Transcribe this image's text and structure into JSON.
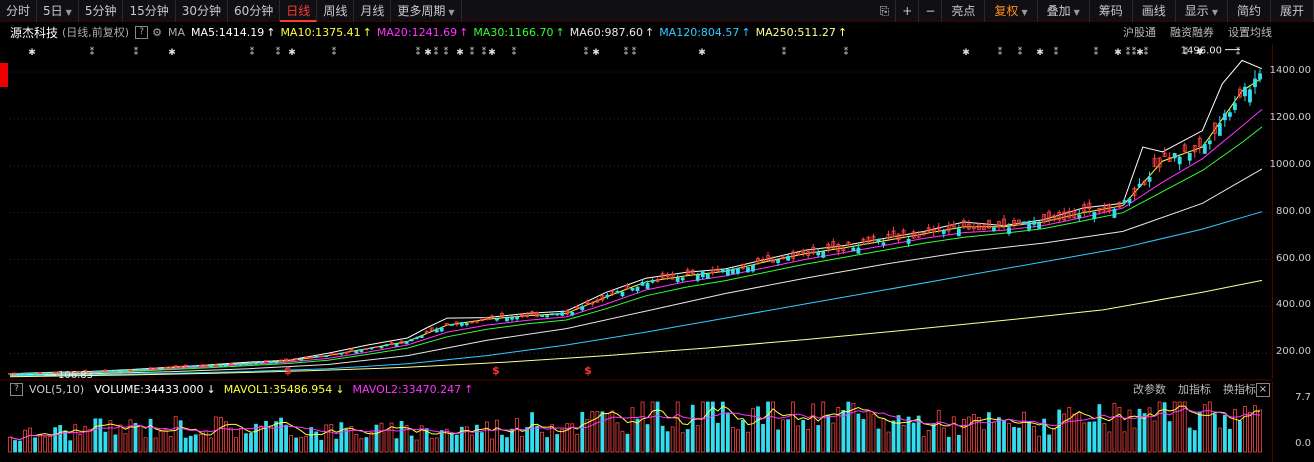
{
  "toolbar": {
    "left": [
      {
        "label": "分时",
        "active": false,
        "dropdown": false
      },
      {
        "label": "5日",
        "active": false,
        "dropdown": true
      },
      {
        "label": "5分钟",
        "active": false,
        "dropdown": false
      },
      {
        "label": "15分钟",
        "active": false,
        "dropdown": false
      },
      {
        "label": "30分钟",
        "active": false,
        "dropdown": false
      },
      {
        "label": "60分钟",
        "active": false,
        "dropdown": false
      },
      {
        "label": "日线",
        "active": true,
        "dropdown": false
      },
      {
        "label": "周线",
        "active": false,
        "dropdown": false
      },
      {
        "label": "月线",
        "active": false,
        "dropdown": false
      },
      {
        "label": "更多周期",
        "active": false,
        "dropdown": true
      }
    ],
    "right": [
      {
        "label": "亮点",
        "dropdown": false,
        "hl": false
      },
      {
        "label": "复权",
        "dropdown": true,
        "hl": true
      },
      {
        "label": "叠加",
        "dropdown": true,
        "hl": false
      },
      {
        "label": "筹码",
        "dropdown": false,
        "hl": false
      },
      {
        "label": "画线",
        "dropdown": false,
        "hl": false
      },
      {
        "label": "显示",
        "dropdown": true,
        "hl": false
      },
      {
        "label": "简约",
        "dropdown": false,
        "hl": false
      },
      {
        "label": "展开",
        "dropdown": false,
        "hl": false
      }
    ],
    "icons": [
      "lock-icon",
      "plus-icon",
      "minus-icon"
    ]
  },
  "info": {
    "stock_name": "源杰科技",
    "mode": "(日线,前复权)",
    "help": "?",
    "ma_label": "MA",
    "ma_items": [
      {
        "text": "MA5:1414.19",
        "color": "#ffffff",
        "arrow": "↑"
      },
      {
        "text": "MA10:1375.41",
        "color": "#ffff3c",
        "arrow": "↑"
      },
      {
        "text": "MA20:1241.69",
        "color": "#ff33ff",
        "arrow": "↑"
      },
      {
        "text": "MA30:1166.70",
        "color": "#33ff33",
        "arrow": "↑"
      },
      {
        "text": "MA60:987.60",
        "color": "#e8e8e8",
        "arrow": "↑"
      },
      {
        "text": "MA120:804.57",
        "color": "#33ccff",
        "arrow": "↑"
      },
      {
        "text": "MA250:511.27",
        "color": "#ffff99",
        "arrow": "↑"
      }
    ],
    "right_items": [
      "沪股通",
      "融资融券",
      "设置均线"
    ]
  },
  "chart_data": [
    {
      "type": "candlestick",
      "name": "price",
      "y_axis_ticks": [
        "1400.00",
        "1200.00",
        "1000.00",
        "800.00",
        "600.00",
        "400.00",
        "200.00"
      ],
      "ylim": [
        90,
        1520
      ],
      "high_annotation": "1496.00",
      "low_annotation": "106.83",
      "ma_series": [
        {
          "label": "MA5",
          "color": "#ffffff",
          "points": [
            [
              0,
              112
            ],
            [
              40,
              118
            ],
            [
              80,
              122
            ],
            [
              120,
              130
            ],
            [
              160,
              140
            ],
            [
              200,
              150
            ],
            [
              240,
              162
            ],
            [
              280,
              170
            ],
            [
              320,
              200
            ],
            [
              360,
              235
            ],
            [
              400,
              265
            ],
            [
              420,
              310
            ],
            [
              440,
              350
            ],
            [
              480,
              352
            ],
            [
              520,
              370
            ],
            [
              560,
              380
            ],
            [
              600,
              460
            ],
            [
              640,
              520
            ],
            [
              680,
              545
            ],
            [
              720,
              560
            ],
            [
              760,
              600
            ],
            [
              800,
              640
            ],
            [
              840,
              660
            ],
            [
              880,
              690
            ],
            [
              920,
              720
            ],
            [
              960,
              760
            ],
            [
              1000,
              745
            ],
            [
              1040,
              770
            ],
            [
              1080,
              820
            ],
            [
              1120,
              840
            ],
            [
              1140,
              1080
            ],
            [
              1160,
              1060
            ],
            [
              1200,
              1150
            ],
            [
              1220,
              1350
            ],
            [
              1240,
              1450
            ],
            [
              1260,
              1414
            ]
          ]
        },
        {
          "label": "MA10",
          "color": "#ffff3c",
          "points": [
            [
              0,
              112
            ],
            [
              40,
              117
            ],
            [
              80,
              121
            ],
            [
              120,
              128
            ],
            [
              160,
              138
            ],
            [
              200,
              148
            ],
            [
              240,
              158
            ],
            [
              280,
              168
            ],
            [
              320,
              190
            ],
            [
              360,
              220
            ],
            [
              400,
              250
            ],
            [
              440,
              320
            ],
            [
              480,
              345
            ],
            [
              520,
              360
            ],
            [
              560,
              370
            ],
            [
              600,
              440
            ],
            [
              640,
              505
            ],
            [
              680,
              530
            ],
            [
              720,
              550
            ],
            [
              760,
              590
            ],
            [
              800,
              625
            ],
            [
              840,
              650
            ],
            [
              880,
              680
            ],
            [
              920,
              710
            ],
            [
              960,
              740
            ],
            [
              1000,
              740
            ],
            [
              1040,
              760
            ],
            [
              1080,
              800
            ],
            [
              1120,
              830
            ],
            [
              1160,
              1020
            ],
            [
              1200,
              1080
            ],
            [
              1240,
              1320
            ],
            [
              1260,
              1375
            ]
          ]
        },
        {
          "label": "MA20",
          "color": "#ff33ff",
          "points": [
            [
              0,
              110
            ],
            [
              40,
              115
            ],
            [
              80,
              119
            ],
            [
              120,
              125
            ],
            [
              160,
              134
            ],
            [
              200,
              143
            ],
            [
              240,
              152
            ],
            [
              280,
              162
            ],
            [
              320,
              178
            ],
            [
              360,
              205
            ],
            [
              400,
              235
            ],
            [
              440,
              290
            ],
            [
              480,
              320
            ],
            [
              520,
              340
            ],
            [
              560,
              355
            ],
            [
              600,
              410
            ],
            [
              640,
              470
            ],
            [
              680,
              505
            ],
            [
              720,
              530
            ],
            [
              760,
              565
            ],
            [
              800,
              600
            ],
            [
              840,
              630
            ],
            [
              880,
              660
            ],
            [
              920,
              690
            ],
            [
              960,
              715
            ],
            [
              1000,
              725
            ],
            [
              1040,
              745
            ],
            [
              1080,
              780
            ],
            [
              1120,
              820
            ],
            [
              1160,
              930
            ],
            [
              1200,
              1030
            ],
            [
              1240,
              1170
            ],
            [
              1260,
              1241
            ]
          ]
        },
        {
          "label": "MA30",
          "color": "#33ff33",
          "points": [
            [
              0,
              108
            ],
            [
              40,
              113
            ],
            [
              80,
              117
            ],
            [
              120,
              122
            ],
            [
              160,
              130
            ],
            [
              200,
              138
            ],
            [
              240,
              147
            ],
            [
              280,
              156
            ],
            [
              320,
              170
            ],
            [
              360,
              195
            ],
            [
              400,
              222
            ],
            [
              440,
              270
            ],
            [
              480,
              302
            ],
            [
              520,
              325
            ],
            [
              560,
              342
            ],
            [
              600,
              390
            ],
            [
              640,
              445
            ],
            [
              680,
              482
            ],
            [
              720,
              510
            ],
            [
              760,
              545
            ],
            [
              800,
              580
            ],
            [
              840,
              610
            ],
            [
              880,
              640
            ],
            [
              920,
              670
            ],
            [
              960,
              695
            ],
            [
              1000,
              712
            ],
            [
              1040,
              732
            ],
            [
              1080,
              765
            ],
            [
              1120,
              800
            ],
            [
              1160,
              890
            ],
            [
              1200,
              980
            ],
            [
              1240,
              1100
            ],
            [
              1260,
              1166
            ]
          ]
        },
        {
          "label": "MA60",
          "color": "#e8e8e8",
          "points": [
            [
              0,
              106
            ],
            [
              80,
              112
            ],
            [
              160,
              121
            ],
            [
              240,
              134
            ],
            [
              320,
              152
            ],
            [
              400,
              190
            ],
            [
              480,
              255
            ],
            [
              560,
              305
            ],
            [
              640,
              380
            ],
            [
              720,
              455
            ],
            [
              800,
              520
            ],
            [
              880,
              580
            ],
            [
              960,
              632
            ],
            [
              1040,
              670
            ],
            [
              1120,
              720
            ],
            [
              1200,
              840
            ],
            [
              1260,
              987
            ]
          ]
        },
        {
          "label": "MA120",
          "color": "#33ccff",
          "points": [
            [
              0,
              104
            ],
            [
              80,
              108
            ],
            [
              160,
              114
            ],
            [
              240,
              122
            ],
            [
              320,
              134
            ],
            [
              400,
              155
            ],
            [
              480,
              190
            ],
            [
              560,
              235
            ],
            [
              640,
              290
            ],
            [
              720,
              350
            ],
            [
              800,
              410
            ],
            [
              880,
              470
            ],
            [
              960,
              530
            ],
            [
              1040,
              590
            ],
            [
              1120,
              650
            ],
            [
              1200,
              730
            ],
            [
              1260,
              804
            ]
          ]
        },
        {
          "label": "MA250",
          "color": "#ffff99",
          "points": [
            [
              0,
              100
            ],
            [
              100,
              106
            ],
            [
              200,
              114
            ],
            [
              300,
              125
            ],
            [
              400,
              140
            ],
            [
              500,
              162
            ],
            [
              600,
              190
            ],
            [
              700,
              222
            ],
            [
              800,
              258
            ],
            [
              900,
              298
            ],
            [
              1000,
              340
            ],
            [
              1100,
              385
            ],
            [
              1200,
              460
            ],
            [
              1260,
              511
            ]
          ]
        }
      ]
    },
    {
      "type": "bar",
      "name": "volume",
      "y_axis_ticks": [
        "7.7",
        "0.0"
      ]
    }
  ],
  "vol_info": {
    "help": "?",
    "label": "VOL(5,10)",
    "items": [
      {
        "text": "VOLUME:34433.000",
        "color": "#ffffff",
        "arrow": "↓"
      },
      {
        "text": "MAVOL1:35486.954",
        "color": "#ffff3c",
        "arrow": "↓"
      },
      {
        "text": "MAVOL2:33470.247",
        "color": "#ff33ff",
        "arrow": "↑"
      }
    ],
    "right_items": [
      "改参数",
      "加指标",
      "换指标"
    ],
    "close": "×"
  },
  "colors": {
    "up": "#ff4444",
    "down": "#33ddee",
    "accent": "#ff3b30",
    "grid": "#3a0000"
  }
}
